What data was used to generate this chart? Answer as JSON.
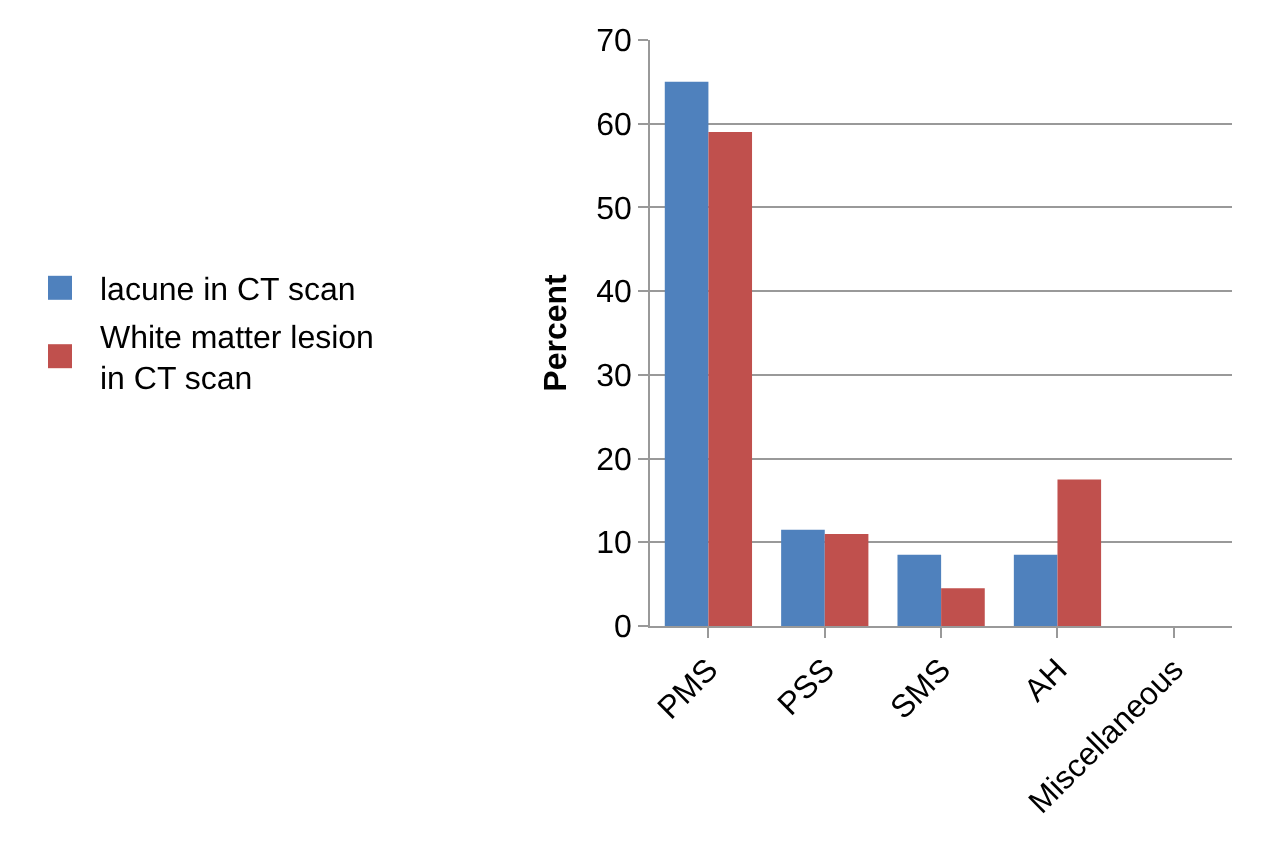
{
  "chart_data": {
    "type": "bar",
    "ylabel": "Percent",
    "categories": [
      "PMS",
      "PSS",
      "SMS",
      "AH",
      "Miscellaneous"
    ],
    "series": [
      {
        "name": "lacune in CT scan",
        "color": "#4f81bd",
        "values": [
          65,
          11.5,
          8.5,
          8.5,
          0
        ]
      },
      {
        "name": "White matter lesion in CT scan",
        "color": "#c0504d",
        "values": [
          59,
          11,
          4.5,
          17.5,
          0
        ]
      }
    ],
    "ylim": [
      0,
      70
    ],
    "yticks": [
      0,
      10,
      20,
      30,
      40,
      50,
      60,
      70
    ],
    "grid": "y",
    "legend": "left"
  }
}
